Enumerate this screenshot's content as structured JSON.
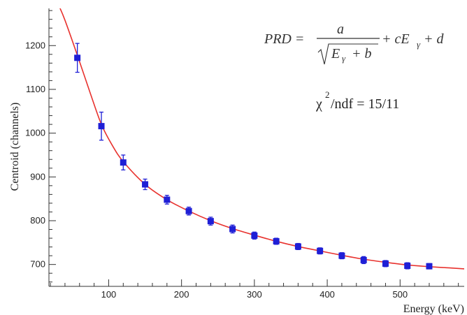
{
  "chart_data": {
    "type": "scatter",
    "xlabel": "Energy (keV)",
    "ylabel": "Centroid (channels)",
    "xlim": [
      18,
      588
    ],
    "ylim": [
      650,
      1285
    ],
    "x_ticks": [
      100,
      200,
      300,
      400,
      500
    ],
    "y_ticks": [
      700,
      800,
      900,
      1000,
      1100,
      1200
    ],
    "x_tick_labels": [
      "100",
      "200",
      "300",
      "400",
      "500"
    ],
    "y_tick_labels": [
      "700",
      "800",
      "900",
      "1000",
      "1100",
      "1200"
    ],
    "grid": false,
    "series": [
      {
        "kind": "points-with-errorbars",
        "color": "#1f1fd6",
        "points": [
          {
            "x": 57,
            "y": 1172,
            "err": 33
          },
          {
            "x": 90,
            "y": 1016,
            "err": 32
          },
          {
            "x": 120,
            "y": 933,
            "err": 17
          },
          {
            "x": 150,
            "y": 883,
            "err": 12
          },
          {
            "x": 180,
            "y": 848,
            "err": 10
          },
          {
            "x": 210,
            "y": 822,
            "err": 9
          },
          {
            "x": 240,
            "y": 799,
            "err": 9
          },
          {
            "x": 270,
            "y": 781,
            "err": 9
          },
          {
            "x": 300,
            "y": 766,
            "err": 8
          },
          {
            "x": 330,
            "y": 753,
            "err": 7
          },
          {
            "x": 360,
            "y": 741,
            "err": 7
          },
          {
            "x": 390,
            "y": 731,
            "err": 7
          },
          {
            "x": 420,
            "y": 720,
            "err": 7
          },
          {
            "x": 450,
            "y": 710,
            "err": 8
          },
          {
            "x": 480,
            "y": 702,
            "err": 7
          },
          {
            "x": 510,
            "y": 697,
            "err": 7
          },
          {
            "x": 540,
            "y": 696,
            "err": 6
          }
        ]
      },
      {
        "kind": "fit-curve",
        "color": "#e8322e",
        "points": [
          {
            "x": 32,
            "y": 1290
          },
          {
            "x": 40,
            "y": 1258
          },
          {
            "x": 57,
            "y": 1178
          },
          {
            "x": 75,
            "y": 1090
          },
          {
            "x": 90,
            "y": 1020
          },
          {
            "x": 105,
            "y": 972
          },
          {
            "x": 120,
            "y": 935
          },
          {
            "x": 150,
            "y": 883
          },
          {
            "x": 180,
            "y": 848
          },
          {
            "x": 210,
            "y": 822
          },
          {
            "x": 240,
            "y": 800
          },
          {
            "x": 270,
            "y": 782
          },
          {
            "x": 300,
            "y": 767
          },
          {
            "x": 330,
            "y": 753
          },
          {
            "x": 360,
            "y": 741
          },
          {
            "x": 390,
            "y": 731
          },
          {
            "x": 420,
            "y": 721
          },
          {
            "x": 450,
            "y": 712
          },
          {
            "x": 480,
            "y": 705
          },
          {
            "x": 510,
            "y": 699
          },
          {
            "x": 540,
            "y": 695
          },
          {
            "x": 570,
            "y": 692
          },
          {
            "x": 588,
            "y": 690
          }
        ]
      }
    ],
    "annotations": {
      "formula_lhs": "PRD =",
      "formula_numerator": "a",
      "formula_denominator": "E",
      "formula_denominator_sub": "γ",
      "formula_denominator_tail": "+ b",
      "formula_rhs": "+ cE",
      "formula_rhs_sub": "γ",
      "formula_rhs_tail": "+ d",
      "chi_symbol": "χ",
      "chi_power": "2",
      "chi_text": "/ndf  = 15/11"
    }
  }
}
